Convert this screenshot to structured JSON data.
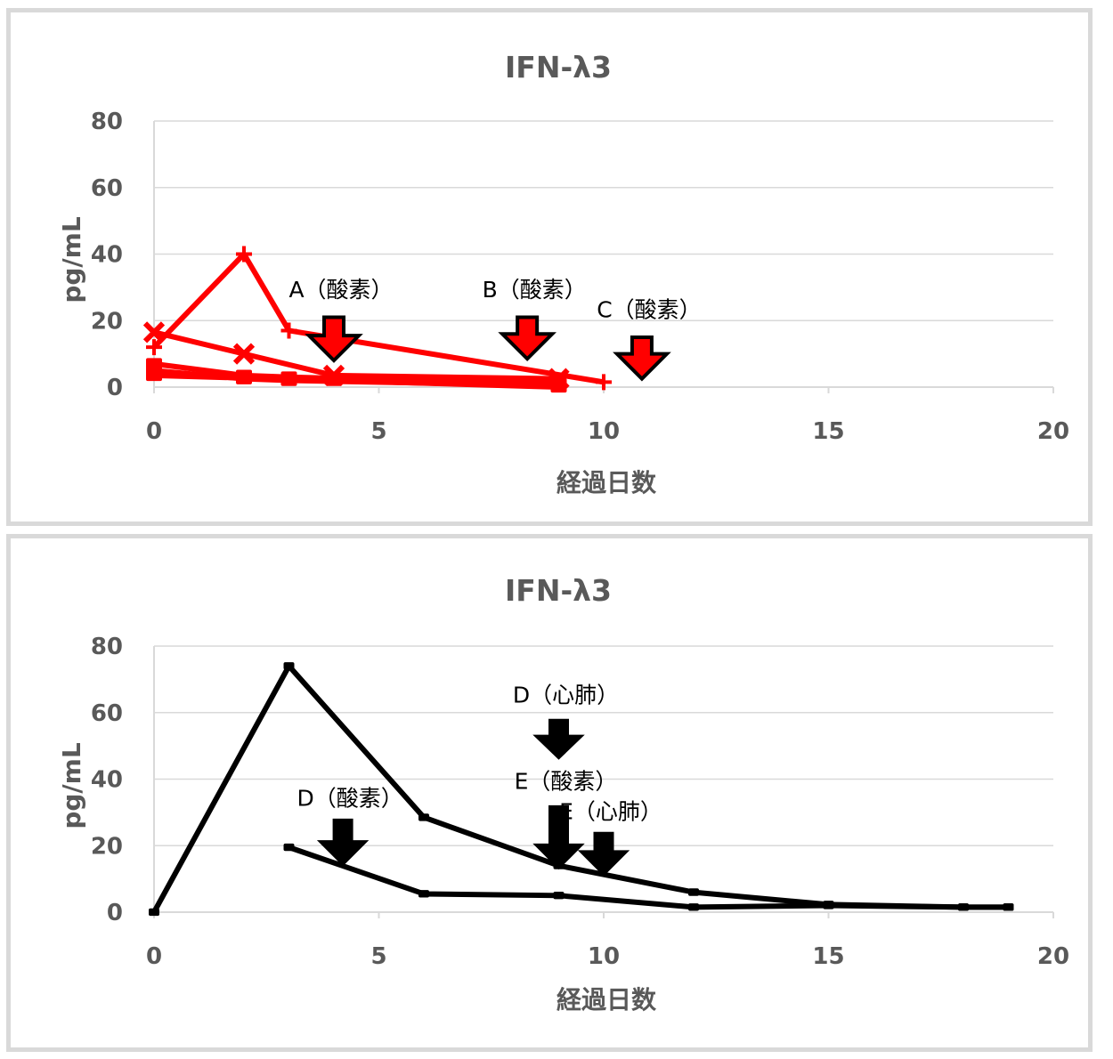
{
  "chart_data": [
    {
      "type": "line",
      "title": "IFN-λ3",
      "xlabel": "経過日数",
      "ylabel": "pg/mL",
      "xlim": [
        0,
        20
      ],
      "ylim": [
        0,
        80
      ],
      "xticks": [
        "0",
        "5",
        "10",
        "15",
        "20"
      ],
      "yticks": [
        "0",
        "20",
        "40",
        "60",
        "80"
      ],
      "grid": true,
      "color": "#ff0000",
      "series": [
        {
          "marker": "plus",
          "points": [
            [
              0,
              12
            ],
            [
              2,
              40
            ],
            [
              3,
              17
            ],
            [
              10,
              1.5
            ]
          ]
        },
        {
          "marker": "x",
          "points": [
            [
              0,
              16.5
            ],
            [
              2,
              10
            ],
            [
              4,
              3.5
            ],
            [
              9,
              2.5
            ]
          ]
        },
        {
          "marker": "square",
          "points": [
            [
              0,
              7
            ],
            [
              2,
              3.5
            ],
            [
              3,
              3
            ],
            [
              9,
              1
            ]
          ]
        },
        {
          "marker": "square",
          "points": [
            [
              0,
              5
            ],
            [
              2,
              2.5
            ],
            [
              3,
              2
            ],
            [
              9,
              0.5
            ]
          ]
        },
        {
          "marker": "square",
          "points": [
            [
              0,
              3.5
            ],
            [
              4,
              2
            ],
            [
              9,
              0
            ]
          ]
        }
      ],
      "annotations": [
        {
          "label": "A（酸素）",
          "x": 4,
          "label_y": 27,
          "arrow_top": 21,
          "arrow_tip": 8
        },
        {
          "label": "B（酸素）",
          "x": 8.3,
          "label_y": 27,
          "arrow_top": 21,
          "arrow_tip": 8.5
        },
        {
          "label": "C（酸素）",
          "x": 10.85,
          "label_y": 21,
          "arrow_top": 15,
          "arrow_tip": 2.5
        }
      ]
    },
    {
      "type": "line",
      "title": "IFN-λ3",
      "xlabel": "経過日数",
      "ylabel": "pg/mL",
      "xlim": [
        0,
        20
      ],
      "ylim": [
        0,
        80
      ],
      "xticks": [
        "0",
        "5",
        "10",
        "15",
        "20"
      ],
      "yticks": [
        "0",
        "20",
        "40",
        "60",
        "80"
      ],
      "grid": true,
      "color": "#000000",
      "series": [
        {
          "marker": "square",
          "points": [
            [
              0,
              0
            ],
            [
              3,
              74
            ],
            [
              6,
              28.5
            ],
            [
              9,
              14
            ],
            [
              12,
              6
            ],
            [
              15,
              2.3
            ],
            [
              18,
              1.5
            ],
            [
              19,
              1.5
            ]
          ]
        },
        {
          "marker": "square",
          "points": [
            [
              3,
              19.5
            ],
            [
              6,
              5.5
            ],
            [
              9,
              5
            ],
            [
              12,
              1.5
            ],
            [
              15,
              2
            ],
            [
              18,
              1.5
            ],
            [
              19,
              1.5
            ]
          ]
        }
      ],
      "annotations": [
        {
          "label": "D（心肺）",
          "x": 9,
          "label_y": 63,
          "arrow_top": 58,
          "arrow_tip": 46
        },
        {
          "label": "D（酸素）",
          "x": 4.2,
          "label_y": 32,
          "arrow_top": 28,
          "arrow_tip": 14
        },
        {
          "label": "E（酸素）",
          "x": 9,
          "label_y": 37,
          "arrow_top": 32,
          "arrow_tip": 13
        },
        {
          "label": "E（心肺）",
          "x": 10,
          "label_y": 28,
          "arrow_top": 24,
          "arrow_tip": 11
        }
      ]
    }
  ]
}
